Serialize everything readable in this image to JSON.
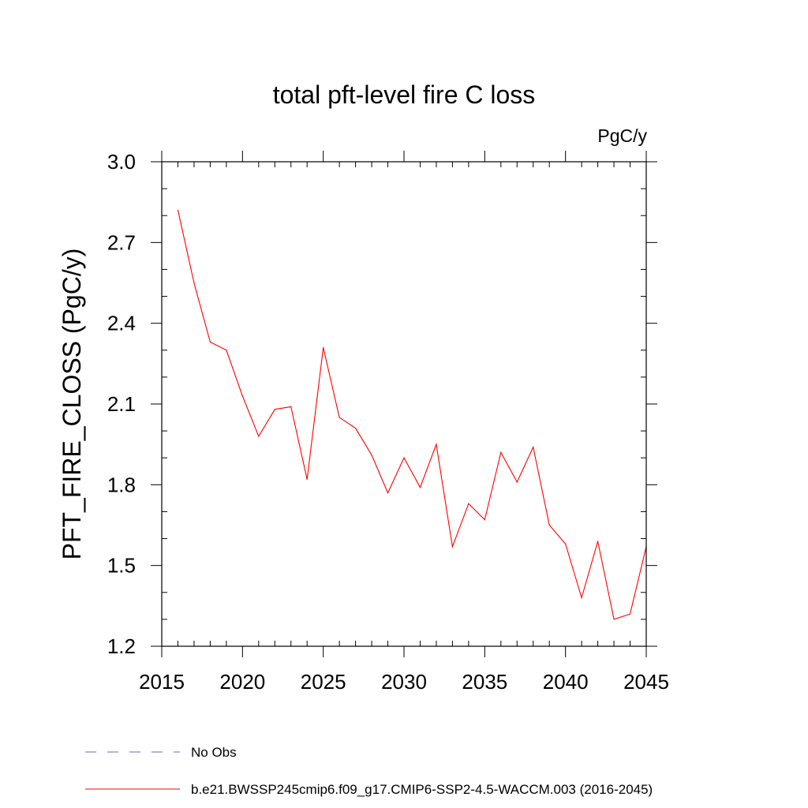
{
  "chart_data": {
    "type": "line",
    "title": "total pft-level fire C loss",
    "units": "PgC/y",
    "xlabel": "",
    "ylabel": "PFT_FIRE_CLOSS  (PgC/y)",
    "xlim": [
      2015,
      2045
    ],
    "ylim": [
      1.2,
      3.0
    ],
    "xticks": [
      2015,
      2020,
      2025,
      2030,
      2035,
      2040,
      2045
    ],
    "xtick_labels": [
      "2015",
      "2020",
      "2025",
      "2030",
      "2035",
      "2040",
      "2045"
    ],
    "yticks": [
      1.2,
      1.5,
      1.8,
      2.1,
      2.4,
      2.7,
      3.0
    ],
    "ytick_labels": [
      "1.2",
      "1.5",
      "1.8",
      "2.1",
      "2.4",
      "2.7",
      "3.0"
    ],
    "series": [
      {
        "name": "b.e21.BWSSP245cmip6.f09_g17.CMIP6-SSP2-4.5-WACCM.003 (2016-2045)",
        "color": "#ff0000",
        "style": "solid",
        "x": [
          2016,
          2017,
          2018,
          2019,
          2020,
          2021,
          2022,
          2023,
          2024,
          2025,
          2026,
          2027,
          2028,
          2029,
          2030,
          2031,
          2032,
          2033,
          2034,
          2035,
          2036,
          2037,
          2038,
          2039,
          2040,
          2041,
          2042,
          2043,
          2044,
          2045
        ],
        "values": [
          2.82,
          2.55,
          2.33,
          2.3,
          2.13,
          1.98,
          2.08,
          2.09,
          1.82,
          2.31,
          2.05,
          2.01,
          1.91,
          1.77,
          1.9,
          1.79,
          1.95,
          1.57,
          1.73,
          1.67,
          1.92,
          1.81,
          1.94,
          1.65,
          1.58,
          1.38,
          1.59,
          1.3,
          1.32,
          1.57
        ]
      }
    ],
    "legend": [
      {
        "label": "No Obs",
        "color": "#6a6ab0",
        "style": "dashed"
      },
      {
        "label": "b.e21.BWSSP245cmip6.f09_g17.CMIP6-SSP2-4.5-WACCM.003 (2016-2045)",
        "color": "#ff0000",
        "style": "solid"
      }
    ],
    "legend_position": "bottom",
    "grid": false
  }
}
